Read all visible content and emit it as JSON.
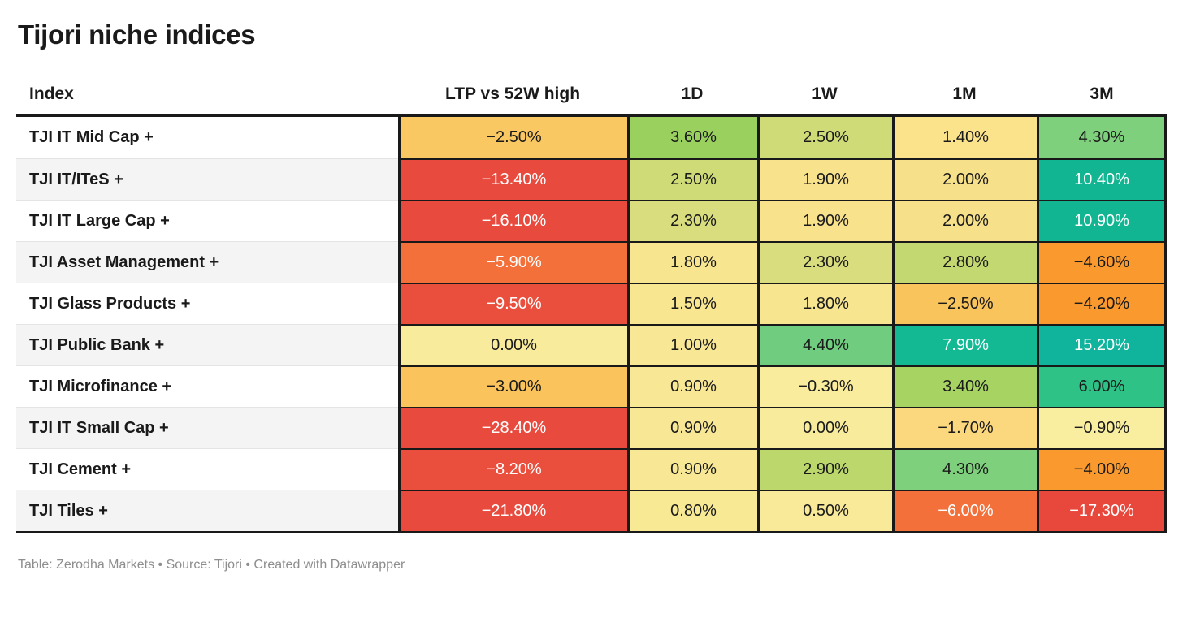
{
  "title": "Tijori niche indices",
  "footer": "Table: Zerodha Markets • Source: Tijori • Created with Datawrapper",
  "chart_data": {
    "type": "table",
    "title": "Tijori niche indices",
    "columns": [
      "Index",
      "LTP vs 52W high",
      "1D",
      "1W",
      "1M",
      "3M"
    ],
    "rows": [
      {
        "label": "TJI IT Mid Cap +",
        "cells": [
          {
            "value": "−2.50%",
            "bg": "#fac862",
            "fg": "#1a1a1a"
          },
          {
            "value": "3.60%",
            "bg": "#9ad05e",
            "fg": "#1a1a1a"
          },
          {
            "value": "2.50%",
            "bg": "#cedb76",
            "fg": "#1a1a1a"
          },
          {
            "value": "1.40%",
            "bg": "#fae38b",
            "fg": "#1a1a1a"
          },
          {
            "value": "4.30%",
            "bg": "#7ed07c",
            "fg": "#1a1a1a"
          }
        ]
      },
      {
        "label": "TJI IT/ITeS +",
        "cells": [
          {
            "value": "−13.40%",
            "bg": "#e84a3d",
            "fg": "#ffffff"
          },
          {
            "value": "2.50%",
            "bg": "#cedb76",
            "fg": "#1a1a1a"
          },
          {
            "value": "1.90%",
            "bg": "#f8e28c",
            "fg": "#1a1a1a"
          },
          {
            "value": "2.00%",
            "bg": "#f7e08a",
            "fg": "#1a1a1a"
          },
          {
            "value": "10.40%",
            "bg": "#12b591",
            "fg": "#ffffff"
          }
        ]
      },
      {
        "label": "TJI IT Large Cap +",
        "cells": [
          {
            "value": "−16.10%",
            "bg": "#e84a3d",
            "fg": "#ffffff"
          },
          {
            "value": "2.30%",
            "bg": "#d9dd7d",
            "fg": "#1a1a1a"
          },
          {
            "value": "1.90%",
            "bg": "#f8e28c",
            "fg": "#1a1a1a"
          },
          {
            "value": "2.00%",
            "bg": "#f7e08a",
            "fg": "#1a1a1a"
          },
          {
            "value": "10.90%",
            "bg": "#12b591",
            "fg": "#ffffff"
          }
        ]
      },
      {
        "label": "TJI Asset Management +",
        "cells": [
          {
            "value": "−5.90%",
            "bg": "#f3703b",
            "fg": "#ffffff"
          },
          {
            "value": "1.80%",
            "bg": "#f8e590",
            "fg": "#1a1a1a"
          },
          {
            "value": "2.30%",
            "bg": "#d9dd7d",
            "fg": "#1a1a1a"
          },
          {
            "value": "2.80%",
            "bg": "#c3d871",
            "fg": "#1a1a1a"
          },
          {
            "value": "−4.60%",
            "bg": "#f9992e",
            "fg": "#1a1a1a"
          }
        ]
      },
      {
        "label": "TJI Glass Products +",
        "cells": [
          {
            "value": "−9.50%",
            "bg": "#ea4f3d",
            "fg": "#ffffff"
          },
          {
            "value": "1.50%",
            "bg": "#f8e691",
            "fg": "#1a1a1a"
          },
          {
            "value": "1.80%",
            "bg": "#f8e590",
            "fg": "#1a1a1a"
          },
          {
            "value": "−2.50%",
            "bg": "#f9c45c",
            "fg": "#1a1a1a"
          },
          {
            "value": "−4.20%",
            "bg": "#f9992e",
            "fg": "#1a1a1a"
          }
        ]
      },
      {
        "label": "TJI Public Bank +",
        "cells": [
          {
            "value": "0.00%",
            "bg": "#f8eb9b",
            "fg": "#1a1a1a"
          },
          {
            "value": "1.00%",
            "bg": "#f8e794",
            "fg": "#1a1a1a"
          },
          {
            "value": "4.40%",
            "bg": "#70cd80",
            "fg": "#1a1a1a"
          },
          {
            "value": "7.90%",
            "bg": "#13b993",
            "fg": "#ffffff"
          },
          {
            "value": "15.20%",
            "bg": "#10b39c",
            "fg": "#ffffff"
          }
        ]
      },
      {
        "label": "TJI Microfinance +",
        "cells": [
          {
            "value": "−3.00%",
            "bg": "#fac35b",
            "fg": "#1a1a1a"
          },
          {
            "value": "0.90%",
            "bg": "#f8e896",
            "fg": "#1a1a1a"
          },
          {
            "value": "−0.30%",
            "bg": "#f9ec9d",
            "fg": "#1a1a1a"
          },
          {
            "value": "3.40%",
            "bg": "#a7d363",
            "fg": "#1a1a1a"
          },
          {
            "value": "6.00%",
            "bg": "#2fc287",
            "fg": "#1a1a1a"
          }
        ]
      },
      {
        "label": "TJI IT Small Cap +",
        "cells": [
          {
            "value": "−28.40%",
            "bg": "#e84a3d",
            "fg": "#ffffff"
          },
          {
            "value": "0.90%",
            "bg": "#f8e896",
            "fg": "#1a1a1a"
          },
          {
            "value": "0.00%",
            "bg": "#f8eb9b",
            "fg": "#1a1a1a"
          },
          {
            "value": "−1.70%",
            "bg": "#fbd77d",
            "fg": "#1a1a1a"
          },
          {
            "value": "−0.90%",
            "bg": "#f9ee9f",
            "fg": "#1a1a1a"
          }
        ]
      },
      {
        "label": "TJI Cement +",
        "cells": [
          {
            "value": "−8.20%",
            "bg": "#ea4f3d",
            "fg": "#ffffff"
          },
          {
            "value": "0.90%",
            "bg": "#f8e896",
            "fg": "#1a1a1a"
          },
          {
            "value": "2.90%",
            "bg": "#bcd76c",
            "fg": "#1a1a1a"
          },
          {
            "value": "4.30%",
            "bg": "#7ed07c",
            "fg": "#1a1a1a"
          },
          {
            "value": "−4.00%",
            "bg": "#f9992e",
            "fg": "#1a1a1a"
          }
        ]
      },
      {
        "label": "TJI Tiles +",
        "cells": [
          {
            "value": "−21.80%",
            "bg": "#e84a3d",
            "fg": "#ffffff"
          },
          {
            "value": "0.80%",
            "bg": "#f8e995",
            "fg": "#1a1a1a"
          },
          {
            "value": "0.50%",
            "bg": "#f8ea98",
            "fg": "#1a1a1a"
          },
          {
            "value": "−6.00%",
            "bg": "#f3703b",
            "fg": "#ffffff"
          },
          {
            "value": "−17.30%",
            "bg": "#e8473c",
            "fg": "#ffffff"
          }
        ]
      }
    ]
  }
}
